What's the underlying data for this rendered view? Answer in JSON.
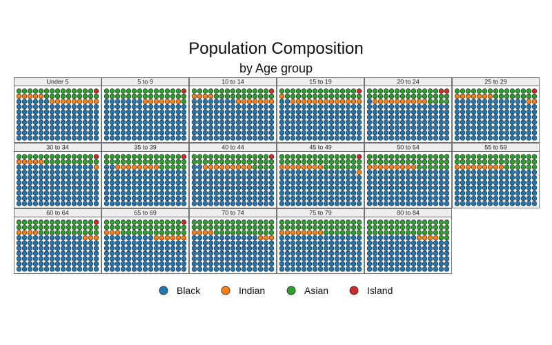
{
  "chart_data": {
    "type": "waffle",
    "title": "Population Composition",
    "subtitle": "by Age group",
    "grid": {
      "columns": 15,
      "rows": 10
    },
    "series_order": [
      "Black",
      "Indian",
      "Asian",
      "Island"
    ],
    "colors": {
      "Black": "#1f77b4",
      "Indian": "#ff7f0e",
      "Asian": "#2ca02c",
      "Island": "#d62728"
    },
    "legend_position": "bottom",
    "panels": [
      {
        "label": "Under 5",
        "counts": {
          "Black": 111,
          "Indian": 14,
          "Asian": 24,
          "Island": 1
        }
      },
      {
        "label": "5 to 9",
        "counts": {
          "Black": 112,
          "Indian": 7,
          "Asian": 30,
          "Island": 1
        }
      },
      {
        "label": "10 to 14",
        "counts": {
          "Black": 113,
          "Indian": 11,
          "Asian": 25,
          "Island": 1
        }
      },
      {
        "label": "15 to 19",
        "counts": {
          "Black": 107,
          "Indian": 14,
          "Asian": 28,
          "Island": 1
        }
      },
      {
        "label": "20 to 24",
        "counts": {
          "Black": 106,
          "Indian": 10,
          "Asian": 32,
          "Island": 2
        }
      },
      {
        "label": "25 to 29",
        "counts": {
          "Black": 118,
          "Indian": 9,
          "Asian": 22,
          "Island": 1
        }
      },
      {
        "label": "30 to 34",
        "counts": {
          "Black": 119,
          "Indian": 6,
          "Asian": 24,
          "Island": 1
        }
      },
      {
        "label": "35 to 39",
        "counts": {
          "Black": 107,
          "Indian": 8,
          "Asian": 34,
          "Island": 1
        }
      },
      {
        "label": "40 to 44",
        "counts": {
          "Black": 107,
          "Indian": 9,
          "Asian": 33,
          "Island": 1
        }
      },
      {
        "label": "45 to 49",
        "counts": {
          "Black": 104,
          "Indian": 9,
          "Asian": 36,
          "Island": 1
        }
      },
      {
        "label": "50 to 54",
        "counts": {
          "Black": 105,
          "Indian": 9,
          "Asian": 36,
          "Island": 0
        }
      },
      {
        "label": "55 to 59",
        "counts": {
          "Black": 105,
          "Indian": 9,
          "Asian": 36,
          "Island": 0
        }
      },
      {
        "label": "60 to 64",
        "counts": {
          "Black": 102,
          "Indian": 7,
          "Asian": 40,
          "Island": 1
        }
      },
      {
        "label": "65 to 69",
        "counts": {
          "Black": 99,
          "Indian": 9,
          "Asian": 41,
          "Island": 1
        }
      },
      {
        "label": "70 to 74",
        "counts": {
          "Black": 102,
          "Indian": 7,
          "Asian": 41,
          "Island": 0
        }
      },
      {
        "label": "75 to 79",
        "counts": {
          "Black": 105,
          "Indian": 8,
          "Asian": 37,
          "Island": 0
        }
      },
      {
        "label": "80 to 84",
        "counts": {
          "Black": 99,
          "Indian": 4,
          "Asian": 47,
          "Island": 0
        }
      }
    ]
  }
}
